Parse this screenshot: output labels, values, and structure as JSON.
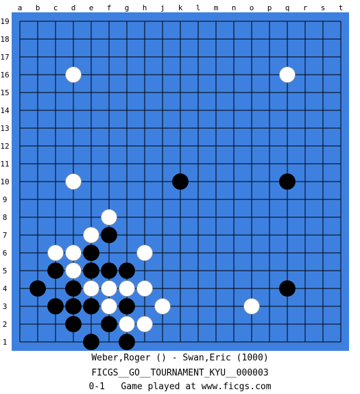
{
  "board": {
    "size": 19,
    "columns": [
      "a",
      "b",
      "c",
      "d",
      "e",
      "f",
      "g",
      "h",
      "j",
      "k",
      "l",
      "m",
      "n",
      "o",
      "p",
      "q",
      "r",
      "s",
      "t"
    ],
    "rows": [
      "19",
      "18",
      "17",
      "16",
      "15",
      "14",
      "13",
      "12",
      "11",
      "10",
      "9",
      "8",
      "7",
      "6",
      "5",
      "4",
      "3",
      "2",
      "1"
    ],
    "colors": {
      "board": "#3d80e0",
      "grid": "#000000",
      "black_stone": "#000000",
      "white_stone": "#ffffff",
      "coordinate_text": "#000000"
    },
    "stones": [
      {
        "color": "white",
        "point": "d16"
      },
      {
        "color": "white",
        "point": "q16"
      },
      {
        "color": "white",
        "point": "d10"
      },
      {
        "color": "black",
        "point": "k10"
      },
      {
        "color": "black",
        "point": "q10"
      },
      {
        "color": "white",
        "point": "f8"
      },
      {
        "color": "white",
        "point": "e7"
      },
      {
        "color": "black",
        "point": "f7"
      },
      {
        "color": "white",
        "point": "c6"
      },
      {
        "color": "white",
        "point": "d6"
      },
      {
        "color": "black",
        "point": "e6"
      },
      {
        "color": "white",
        "point": "h6"
      },
      {
        "color": "black",
        "point": "c5"
      },
      {
        "color": "white",
        "point": "d5"
      },
      {
        "color": "black",
        "point": "e5"
      },
      {
        "color": "black",
        "point": "f5"
      },
      {
        "color": "black",
        "point": "g5"
      },
      {
        "color": "black",
        "point": "b4"
      },
      {
        "color": "black",
        "point": "d4"
      },
      {
        "color": "white",
        "point": "e4"
      },
      {
        "color": "white",
        "point": "f4"
      },
      {
        "color": "white",
        "point": "g4"
      },
      {
        "color": "white",
        "point": "h4"
      },
      {
        "color": "black",
        "point": "q4"
      },
      {
        "color": "black",
        "point": "c3"
      },
      {
        "color": "black",
        "point": "d3"
      },
      {
        "color": "black",
        "point": "e3"
      },
      {
        "color": "white",
        "point": "f3"
      },
      {
        "color": "black",
        "point": "g3"
      },
      {
        "color": "white",
        "point": "j3"
      },
      {
        "color": "white",
        "point": "o3"
      },
      {
        "color": "black",
        "point": "d2"
      },
      {
        "color": "black",
        "point": "f2"
      },
      {
        "color": "white",
        "point": "g2"
      },
      {
        "color": "white",
        "point": "h2"
      },
      {
        "color": "black",
        "point": "e1"
      },
      {
        "color": "black",
        "point": "g1"
      }
    ]
  },
  "game_info": {
    "players": "Weber,Roger () - Swan,Eric (1000)",
    "tournament": "FICGS__GO__TOURNAMENT_KYU__000003",
    "result_line": "0-1   Game played at www.ficgs.com"
  }
}
